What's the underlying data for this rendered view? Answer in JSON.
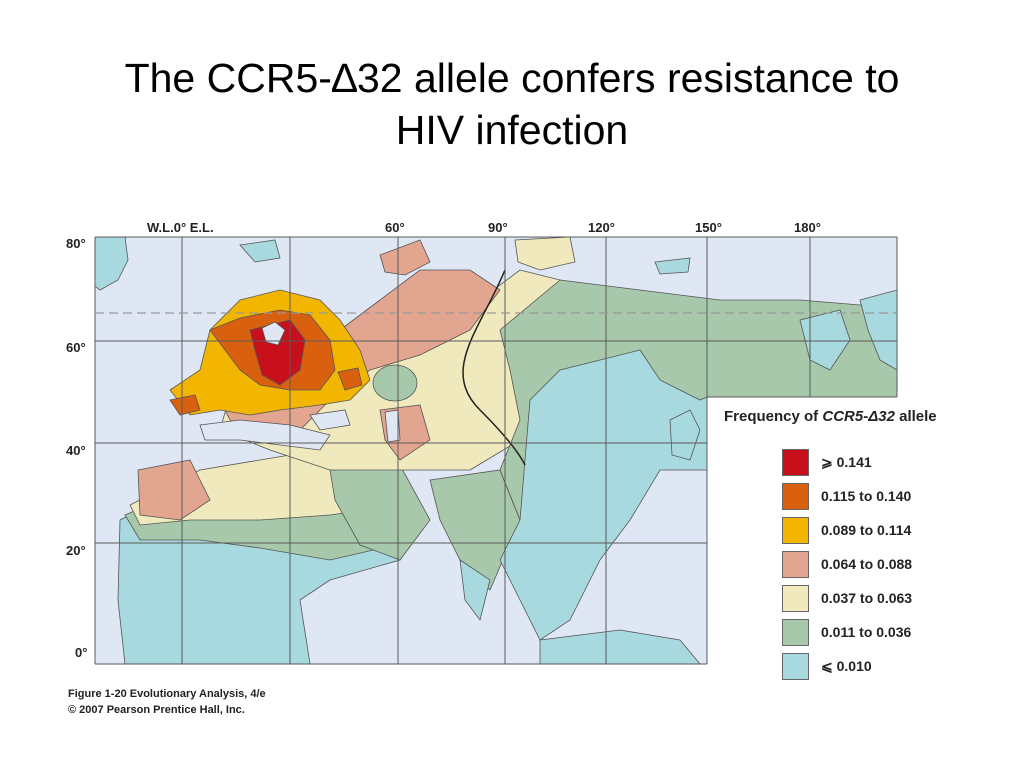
{
  "slide": {
    "title_line1": "The CCR5-∆32 allele confers resistance to",
    "title_line2": "HIV infection"
  },
  "map": {
    "longitude_labels": [
      "W.L.0° E.L.",
      "60°",
      "90°",
      "120°",
      "150°",
      "180°"
    ],
    "latitude_labels": [
      "80°",
      "60°",
      "40°",
      "20°",
      "0°"
    ],
    "colors": {
      "ocean": "#dfe6f4",
      "land_min": "#a7d9df",
      "grid": "#5a5a5a",
      "arctic_circle": "#999999"
    }
  },
  "legend": {
    "title_prefix": "Frequency of ",
    "title_gene": "CCR5-Δ32",
    "title_suffix": " allele",
    "items": [
      {
        "label": "⩾ 0.141",
        "color": "#c8101c"
      },
      {
        "label": "0.115 to 0.140",
        "color": "#d9600f"
      },
      {
        "label": "0.089 to 0.114",
        "color": "#f2b600"
      },
      {
        "label": "0.064 to 0.088",
        "color": "#e2a58f"
      },
      {
        "label": "0.037 to 0.063",
        "color": "#efe9bd"
      },
      {
        "label": "0.011 to 0.036",
        "color": "#a7c8aa"
      },
      {
        "label": "⩽ 0.010",
        "color": "#a7d9df"
      }
    ]
  },
  "caption": {
    "line1": "Figure 1-20  Evolutionary Analysis, 4/e",
    "line2": "© 2007 Pearson Prentice Hall, Inc."
  }
}
